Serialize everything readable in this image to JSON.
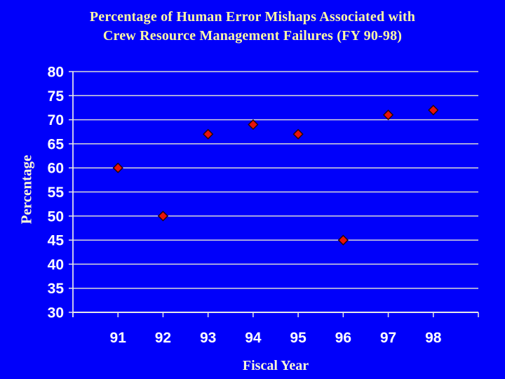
{
  "chart_data": {
    "type": "scatter",
    "title": "Percentage of Human Error Mishaps Associated with Crew Resource Management Failures (FY 90-98)",
    "title_lines": [
      "Percentage of Human Error Mishaps Associated with",
      "Crew Resource Management Failures (FY 90-98)"
    ],
    "xlabel": "Fiscal Year",
    "ylabel": "Percentage",
    "x": [
      91,
      92,
      93,
      94,
      95,
      96,
      97,
      98
    ],
    "values": [
      60,
      50,
      67,
      69,
      67,
      45,
      71,
      72
    ],
    "xtick_labels": [
      "91",
      "92",
      "93",
      "94",
      "95",
      "96",
      "97",
      "98"
    ],
    "ytick_labels": [
      "30",
      "35",
      "40",
      "45",
      "50",
      "55",
      "60",
      "65",
      "70",
      "75",
      "80"
    ],
    "xlim": [
      90,
      99
    ],
    "ylim": [
      30,
      80
    ],
    "ytick_step": 5,
    "xtick_step": 1,
    "grid": "horizontal",
    "legend": "none",
    "marker": "diamond",
    "colors": {
      "background": "#0000fa",
      "title_text": "#fdf8a6",
      "axis_label_text": "#fbf8d8",
      "tick_label_text": "#ffffff",
      "gridline": "#d9d9d9",
      "axis_line": "#e8e8e8",
      "marker_fill": "#e91309",
      "marker_outline": "#240505"
    }
  }
}
